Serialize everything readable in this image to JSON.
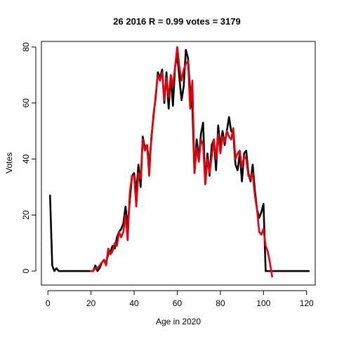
{
  "chart_data": {
    "type": "line",
    "title": "26 2016 R = 0.99 votes = 3179",
    "xlabel": "Age in 2020",
    "ylabel": "Votes",
    "xlim": [
      -3,
      124
    ],
    "ylim": [
      -5,
      82
    ],
    "xticks": [
      0,
      20,
      40,
      60,
      80,
      100,
      120
    ],
    "yticks": [
      0,
      20,
      40,
      60,
      80
    ],
    "grid": false,
    "series": [
      {
        "color": "#000000",
        "points": [
          [
            1,
            27
          ],
          [
            2,
            2
          ],
          [
            3,
            0
          ],
          [
            4,
            1
          ],
          [
            5,
            0
          ],
          [
            6,
            0
          ],
          [
            10,
            0
          ],
          [
            15,
            0
          ],
          [
            20,
            0
          ],
          [
            21,
            0
          ],
          [
            22,
            2
          ],
          [
            23,
            0
          ],
          [
            24,
            1
          ],
          [
            25,
            3
          ],
          [
            26,
            4
          ],
          [
            27,
            3
          ],
          [
            28,
            6
          ],
          [
            29,
            7
          ],
          [
            30,
            9
          ],
          [
            31,
            8
          ],
          [
            32,
            12
          ],
          [
            33,
            14
          ],
          [
            34,
            15
          ],
          [
            35,
            17
          ],
          [
            36,
            23
          ],
          [
            37,
            16
          ],
          [
            38,
            25
          ],
          [
            39,
            34
          ],
          [
            40,
            35
          ],
          [
            41,
            28
          ],
          [
            42,
            38
          ],
          [
            43,
            30
          ],
          [
            44,
            48
          ],
          [
            45,
            44
          ],
          [
            46,
            45
          ],
          [
            47,
            38
          ],
          [
            48,
            47
          ],
          [
            49,
            56
          ],
          [
            50,
            62
          ],
          [
            51,
            71
          ],
          [
            52,
            69
          ],
          [
            53,
            72
          ],
          [
            54,
            60
          ],
          [
            55,
            71
          ],
          [
            56,
            58
          ],
          [
            57,
            70
          ],
          [
            58,
            59
          ],
          [
            59,
            73
          ],
          [
            60,
            77
          ],
          [
            61,
            69
          ],
          [
            62,
            61
          ],
          [
            63,
            66
          ],
          [
            64,
            79
          ],
          [
            65,
            76
          ],
          [
            66,
            64
          ],
          [
            67,
            58
          ],
          [
            68,
            35
          ],
          [
            69,
            47
          ],
          [
            70,
            40
          ],
          [
            71,
            49
          ],
          [
            72,
            53
          ],
          [
            73,
            31
          ],
          [
            74,
            42
          ],
          [
            75,
            34
          ],
          [
            76,
            45
          ],
          [
            77,
            47
          ],
          [
            78,
            36
          ],
          [
            79,
            52
          ],
          [
            80,
            44
          ],
          [
            81,
            50
          ],
          [
            82,
            45
          ],
          [
            83,
            50
          ],
          [
            84,
            55
          ],
          [
            85,
            50
          ],
          [
            86,
            49
          ],
          [
            87,
            38
          ],
          [
            88,
            36
          ],
          [
            89,
            42
          ],
          [
            90,
            32
          ],
          [
            91,
            42
          ],
          [
            92,
            43
          ],
          [
            93,
            35
          ],
          [
            94,
            32
          ],
          [
            95,
            38
          ],
          [
            96,
            29
          ],
          [
            97,
            22
          ],
          [
            98,
            19
          ],
          [
            99,
            21
          ],
          [
            100,
            24
          ],
          [
            101,
            0
          ],
          [
            102,
            0
          ],
          [
            110,
            0
          ],
          [
            121,
            0
          ]
        ]
      },
      {
        "color": "#e8000b",
        "points": [
          [
            20,
            0
          ],
          [
            21,
            0
          ],
          [
            22,
            1
          ],
          [
            23,
            1
          ],
          [
            24,
            2
          ],
          [
            25,
            3
          ],
          [
            26,
            4
          ],
          [
            27,
            2
          ],
          [
            28,
            8
          ],
          [
            29,
            6
          ],
          [
            30,
            7
          ],
          [
            31,
            10
          ],
          [
            32,
            9
          ],
          [
            33,
            14
          ],
          [
            34,
            12
          ],
          [
            35,
            14
          ],
          [
            36,
            20
          ],
          [
            37,
            11
          ],
          [
            38,
            28
          ],
          [
            39,
            34
          ],
          [
            40,
            34
          ],
          [
            41,
            23
          ],
          [
            42,
            35
          ],
          [
            43,
            33
          ],
          [
            44,
            47
          ],
          [
            45,
            43
          ],
          [
            46,
            45
          ],
          [
            47,
            34
          ],
          [
            48,
            48
          ],
          [
            49,
            55
          ],
          [
            50,
            63
          ],
          [
            51,
            70
          ],
          [
            52,
            68
          ],
          [
            53,
            71
          ],
          [
            54,
            61
          ],
          [
            55,
            69
          ],
          [
            56,
            62
          ],
          [
            57,
            70
          ],
          [
            58,
            66
          ],
          [
            59,
            73
          ],
          [
            60,
            80
          ],
          [
            61,
            73
          ],
          [
            62,
            68
          ],
          [
            63,
            72
          ],
          [
            64,
            74
          ],
          [
            65,
            75
          ],
          [
            66,
            58
          ],
          [
            67,
            68
          ],
          [
            68,
            35
          ],
          [
            69,
            44
          ],
          [
            70,
            39
          ],
          [
            71,
            47
          ],
          [
            72,
            45
          ],
          [
            73,
            31
          ],
          [
            74,
            40
          ],
          [
            75,
            35
          ],
          [
            76,
            41
          ],
          [
            77,
            47
          ],
          [
            78,
            40
          ],
          [
            79,
            49
          ],
          [
            80,
            42
          ],
          [
            81,
            48
          ],
          [
            82,
            46
          ],
          [
            83,
            50
          ],
          [
            84,
            48
          ],
          [
            85,
            47
          ],
          [
            86,
            51
          ],
          [
            87,
            40
          ],
          [
            88,
            42
          ],
          [
            89,
            43
          ],
          [
            90,
            37
          ],
          [
            91,
            41
          ],
          [
            92,
            40
          ],
          [
            93,
            34
          ],
          [
            94,
            33
          ],
          [
            95,
            35
          ],
          [
            96,
            27
          ],
          [
            97,
            22
          ],
          [
            98,
            14
          ],
          [
            99,
            13
          ],
          [
            100,
            15
          ],
          [
            101,
            9
          ],
          [
            102,
            7
          ],
          [
            103,
            3
          ],
          [
            104,
            -2
          ]
        ]
      }
    ]
  }
}
